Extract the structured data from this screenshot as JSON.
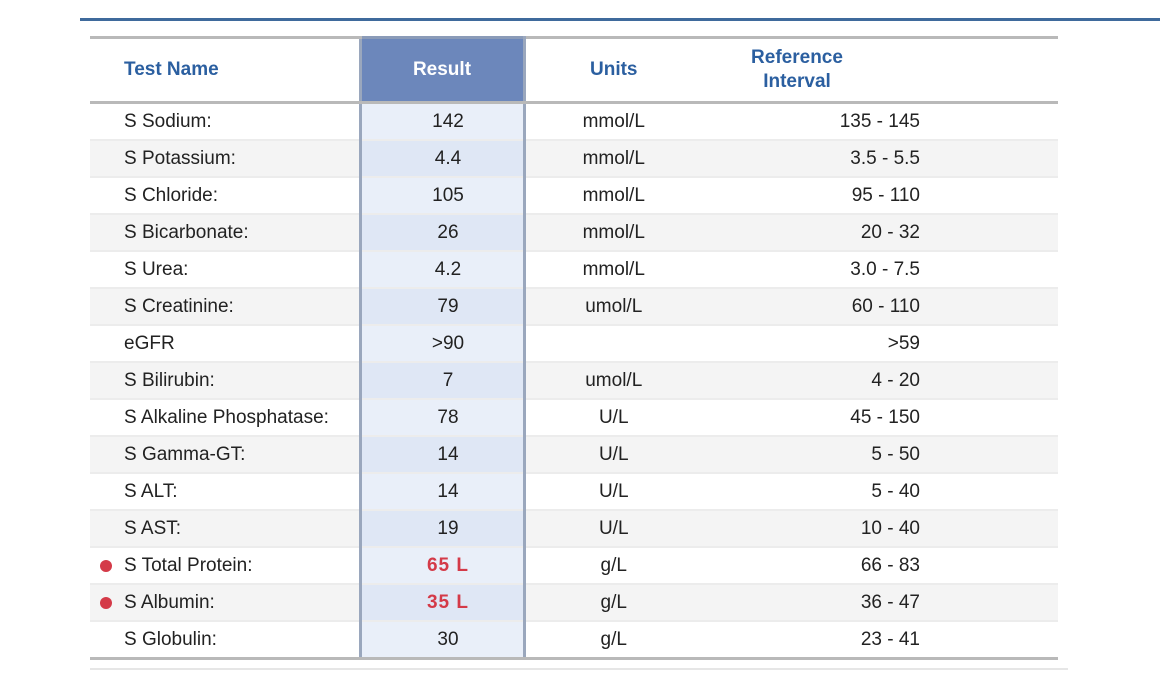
{
  "table": {
    "headers": {
      "name": "Test Name",
      "result": "Result",
      "units": "Units",
      "reference": "Reference\nInterval"
    },
    "rows": [
      {
        "name": "S Sodium:",
        "result": "142",
        "units": "mmol/L",
        "reference": "135 - 145",
        "flag": ""
      },
      {
        "name": "S Potassium:",
        "result": "4.4",
        "units": "mmol/L",
        "reference": "3.5 - 5.5",
        "flag": ""
      },
      {
        "name": "S Chloride:",
        "result": "105",
        "units": "mmol/L",
        "reference": "95 - 110",
        "flag": ""
      },
      {
        "name": "S Bicarbonate:",
        "result": "26",
        "units": "mmol/L",
        "reference": "20 - 32",
        "flag": ""
      },
      {
        "name": "S Urea:",
        "result": "4.2",
        "units": "mmol/L",
        "reference": "3.0 - 7.5",
        "flag": ""
      },
      {
        "name": "S Creatinine:",
        "result": "79",
        "units": "umol/L",
        "reference": "60 - 110",
        "flag": ""
      },
      {
        "name": "eGFR",
        "result": ">90",
        "units": "",
        "reference": ">59",
        "flag": ""
      },
      {
        "name": "S Bilirubin:",
        "result": "7",
        "units": "umol/L",
        "reference": "4 - 20",
        "flag": ""
      },
      {
        "name": "S Alkaline Phosphatase:",
        "result": "78",
        "units": "U/L",
        "reference": "45 - 150",
        "flag": ""
      },
      {
        "name": "S Gamma-GT:",
        "result": "14",
        "units": "U/L",
        "reference": "5 - 50",
        "flag": ""
      },
      {
        "name": "S ALT:",
        "result": "14",
        "units": "U/L",
        "reference": "5 - 40",
        "flag": ""
      },
      {
        "name": "S AST:",
        "result": "19",
        "units": "U/L",
        "reference": "10 - 40",
        "flag": ""
      },
      {
        "name": "S Total Protein:",
        "result": "65 L",
        "units": "g/L",
        "reference": "66 - 83",
        "flag": "low"
      },
      {
        "name": "S Albumin:",
        "result": "35 L",
        "units": "g/L",
        "reference": "36 - 47",
        "flag": "low"
      },
      {
        "name": "S Globulin:",
        "result": "30",
        "units": "g/L",
        "reference": "23 - 41",
        "flag": ""
      }
    ]
  },
  "colors": {
    "header_text": "#2b5fa0",
    "result_header_bg": "#6c87bb",
    "result_column_bg": "#e9eff9",
    "flag_red": "#d43a48",
    "top_rule": "#3f6a9c"
  },
  "icons": {
    "flag_marker": "red-dot-icon"
  }
}
